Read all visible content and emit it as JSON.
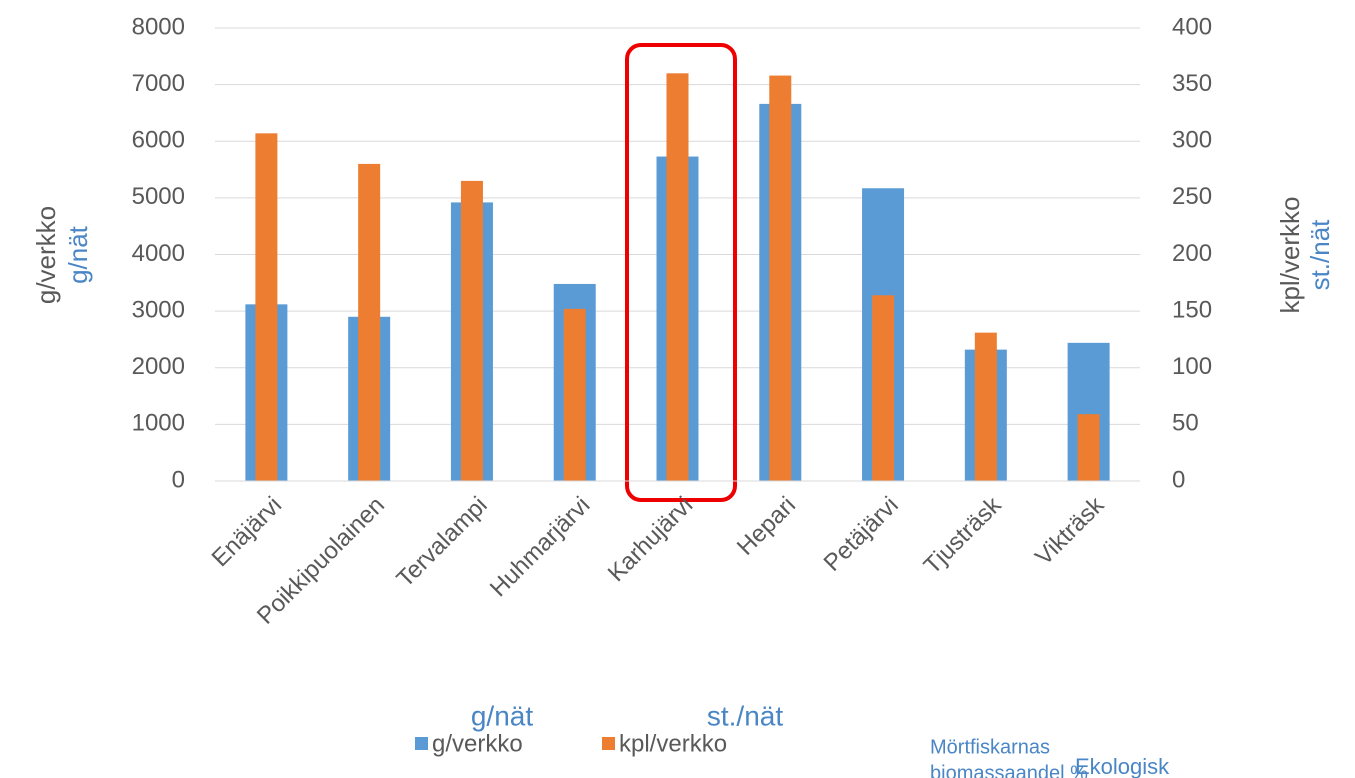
{
  "chart_data": {
    "type": "bar",
    "categories": [
      "Enäjärvi",
      "Poikkipuolainen",
      "Tervalampi",
      "Huhmarjärvi",
      "Karhujärvi",
      "Hepari",
      "Petäjärvi",
      "Tjusträsk",
      "Vikträsk"
    ],
    "series": [
      {
        "name": "g/verkko",
        "color": "#5b9bd5",
        "values": [
          3120,
          2900,
          4920,
          3480,
          5730,
          6660,
          5170,
          2320,
          2440
        ]
      },
      {
        "name": "kpl/verkko",
        "color": "#ed7d31",
        "axis": "y2",
        "values": [
          307,
          280,
          265,
          152,
          360,
          358,
          164,
          131,
          59
        ]
      }
    ],
    "ylim": [
      0,
      8000
    ],
    "yticks": [
      0,
      1000,
      2000,
      3000,
      4000,
      5000,
      6000,
      7000,
      8000
    ],
    "y2lim": [
      0,
      400
    ],
    "y2ticks": [
      0,
      50,
      100,
      150,
      200,
      250,
      300,
      350,
      400
    ],
    "grid": true,
    "ylabel": [
      "g/verkko",
      "g/nät"
    ],
    "y2label": [
      "kpl/verkko",
      "st./nät"
    ],
    "legend_translations": [
      "g/nät",
      "st./nät"
    ],
    "annotations": [
      "Mörtfiskarnas",
      "biomassaandel %",
      "Ekologisk"
    ]
  }
}
